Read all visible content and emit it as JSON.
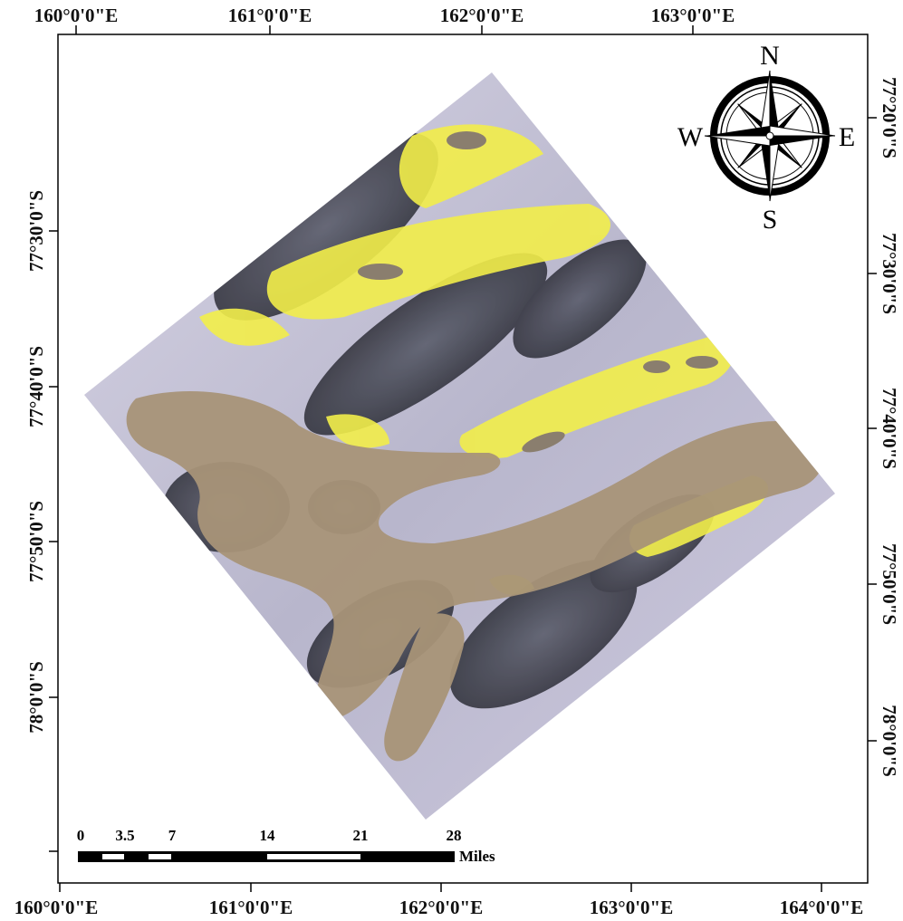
{
  "map": {
    "top_lon_labels": [
      "160°0'0\"E",
      "161°0'0\"E",
      "162°0'0\"E",
      "163°0'0\"E"
    ],
    "bottom_lon_labels": [
      "160°0'0\"E",
      "161°0'0\"E",
      "162°0'0\"E",
      "163°0'0\"E",
      "164°0'0\"E"
    ],
    "left_lat_labels": [
      "77°30'0\"S",
      "77°40'0\"S",
      "77°50'0\"S",
      "78°0'0\"S"
    ],
    "right_lat_labels": [
      "77°20'0\"S",
      "77°30'0\"S",
      "77°40'0\"S",
      "77°50'0\"S",
      "78°0'0\"S"
    ]
  },
  "compass": {
    "north": "N",
    "south": "S",
    "east": "E",
    "west": "W",
    "icon": "compass-rose-icon"
  },
  "scale_bar": {
    "ticks": [
      "0",
      "3.5",
      "7",
      "14",
      "21",
      "28"
    ],
    "units": "Miles"
  },
  "colors": {
    "snow": "#c9c6d8",
    "glacier": "#a89478",
    "vegetation_highlight": "#f2ee4a",
    "rock": "#3a3d48",
    "frame": "#000000"
  }
}
